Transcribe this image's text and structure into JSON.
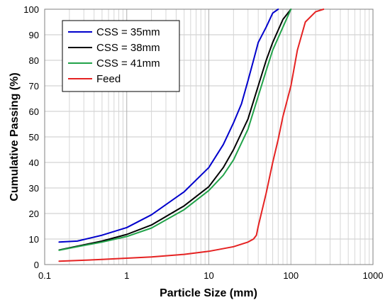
{
  "chart_data": {
    "type": "line",
    "title": "",
    "xlabel": "Particle Size (mm)",
    "ylabel": "Cumulative Passing (%)",
    "xscale": "log",
    "xlim": [
      0.1,
      1000
    ],
    "ylim": [
      0,
      100
    ],
    "x_ticks": [
      0.1,
      1,
      10,
      100,
      1000
    ],
    "x_tick_labels": [
      "0.1",
      "1",
      "10",
      "100",
      "1000"
    ],
    "y_ticks": [
      0,
      10,
      20,
      30,
      40,
      50,
      60,
      70,
      80,
      90,
      100
    ],
    "y_tick_labels": [
      "0",
      "10",
      "20",
      "30",
      "40",
      "50",
      "60",
      "70",
      "80",
      "90",
      "100"
    ],
    "grid": true,
    "legend_position": "top-left",
    "series": [
      {
        "name": "CSS = 35mm",
        "color": "#0000cc",
        "points": [
          [
            0.15,
            8.8
          ],
          [
            0.25,
            9.2
          ],
          [
            0.5,
            11.5
          ],
          [
            1,
            14.5
          ],
          [
            2,
            19.5
          ],
          [
            5,
            28.5
          ],
          [
            10,
            38
          ],
          [
            15,
            47
          ],
          [
            20,
            55.5
          ],
          [
            25,
            63
          ],
          [
            30,
            72
          ],
          [
            35,
            80
          ],
          [
            40,
            87
          ],
          [
            50,
            93
          ],
          [
            60,
            98.5
          ],
          [
            70,
            100
          ]
        ]
      },
      {
        "name": "CSS = 38mm",
        "color": "#000000",
        "points": [
          [
            0.15,
            5.7
          ],
          [
            0.25,
            7.2
          ],
          [
            0.5,
            9.2
          ],
          [
            1,
            11.8
          ],
          [
            2,
            15.5
          ],
          [
            5,
            23
          ],
          [
            10,
            30.5
          ],
          [
            15,
            38
          ],
          [
            20,
            45
          ],
          [
            30,
            57
          ],
          [
            40,
            70
          ],
          [
            50,
            80
          ],
          [
            60,
            87
          ],
          [
            80,
            96
          ],
          [
            100,
            100
          ]
        ]
      },
      {
        "name": "CSS = 41mm",
        "color": "#22a34a",
        "points": [
          [
            0.15,
            5.6
          ],
          [
            0.25,
            7
          ],
          [
            0.5,
            8.8
          ],
          [
            1,
            11
          ],
          [
            2,
            14.3
          ],
          [
            5,
            21.5
          ],
          [
            10,
            29
          ],
          [
            15,
            35
          ],
          [
            20,
            41
          ],
          [
            30,
            53
          ],
          [
            40,
            66
          ],
          [
            50,
            76
          ],
          [
            60,
            84
          ],
          [
            80,
            93
          ],
          [
            100,
            100
          ]
        ]
      },
      {
        "name": "Feed",
        "color": "#e52222",
        "points": [
          [
            0.15,
            1.3
          ],
          [
            0.5,
            2
          ],
          [
            1,
            2.5
          ],
          [
            2,
            3
          ],
          [
            5,
            4
          ],
          [
            10,
            5.2
          ],
          [
            20,
            7
          ],
          [
            30,
            8.8
          ],
          [
            35,
            10
          ],
          [
            38,
            11.5
          ],
          [
            40,
            15
          ],
          [
            50,
            28
          ],
          [
            60,
            40
          ],
          [
            70,
            49
          ],
          [
            80,
            58
          ],
          [
            100,
            70
          ],
          [
            120,
            84
          ],
          [
            150,
            95
          ],
          [
            200,
            99
          ],
          [
            250,
            100
          ]
        ]
      }
    ]
  }
}
